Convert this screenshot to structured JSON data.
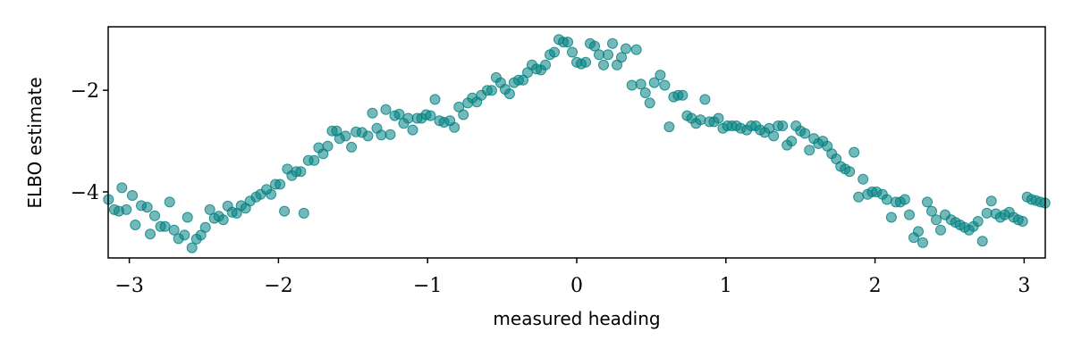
{
  "chart_data": {
    "type": "scatter",
    "title": "",
    "xlabel": "measured heading",
    "ylabel": "ELBO estimate",
    "xlim": [
      -3.14159,
      3.14159
    ],
    "ylim": [
      -5.3,
      -0.75
    ],
    "x_ticks": [
      -3,
      -2,
      -1,
      0,
      1,
      2,
      3
    ],
    "x_tick_labels": [
      "−3",
      "−2",
      "−1",
      "0",
      "1",
      "2",
      "3"
    ],
    "y_ticks": [
      -2,
      -4
    ],
    "y_tick_labels": [
      "−2",
      "−4"
    ],
    "grid": false,
    "legend": "none",
    "marker_color": "#008080",
    "marker_alpha": 0.55,
    "points": [
      [
        -3.14,
        -4.15
      ],
      [
        -3.1,
        -4.35
      ],
      [
        -3.07,
        -4.38
      ],
      [
        -3.05,
        -3.92
      ],
      [
        -3.02,
        -4.35
      ],
      [
        -2.98,
        -4.07
      ],
      [
        -2.96,
        -4.65
      ],
      [
        -2.92,
        -4.27
      ],
      [
        -2.88,
        -4.3
      ],
      [
        -2.86,
        -4.83
      ],
      [
        -2.83,
        -4.47
      ],
      [
        -2.79,
        -4.68
      ],
      [
        -2.76,
        -4.68
      ],
      [
        -2.73,
        -4.2
      ],
      [
        -2.7,
        -4.75
      ],
      [
        -2.67,
        -4.92
      ],
      [
        -2.63,
        -4.85
      ],
      [
        -2.61,
        -4.5
      ],
      [
        -2.58,
        -5.1
      ],
      [
        -2.55,
        -4.93
      ],
      [
        -2.52,
        -4.85
      ],
      [
        -2.49,
        -4.7
      ],
      [
        -2.46,
        -4.35
      ],
      [
        -2.43,
        -4.52
      ],
      [
        -2.4,
        -4.48
      ],
      [
        -2.37,
        -4.55
      ],
      [
        -2.34,
        -4.28
      ],
      [
        -2.31,
        -4.4
      ],
      [
        -2.28,
        -4.42
      ],
      [
        -2.25,
        -4.27
      ],
      [
        -2.22,
        -4.32
      ],
      [
        -2.19,
        -4.18
      ],
      [
        -2.15,
        -4.1
      ],
      [
        -2.12,
        -4.05
      ],
      [
        -2.08,
        -3.95
      ],
      [
        -2.05,
        -4.05
      ],
      [
        -2.02,
        -3.85
      ],
      [
        -1.99,
        -3.85
      ],
      [
        -1.96,
        -4.38
      ],
      [
        -1.94,
        -3.55
      ],
      [
        -1.91,
        -3.68
      ],
      [
        -1.88,
        -3.6
      ],
      [
        -1.85,
        -3.6
      ],
      [
        -1.83,
        -4.42
      ],
      [
        -1.8,
        -3.38
      ],
      [
        -1.76,
        -3.38
      ],
      [
        -1.73,
        -3.13
      ],
      [
        -1.7,
        -3.25
      ],
      [
        -1.67,
        -3.1
      ],
      [
        -1.64,
        -2.8
      ],
      [
        -1.61,
        -2.8
      ],
      [
        -1.59,
        -2.95
      ],
      [
        -1.55,
        -2.9
      ],
      [
        -1.51,
        -3.12
      ],
      [
        -1.48,
        -2.82
      ],
      [
        -1.44,
        -2.83
      ],
      [
        -1.4,
        -2.9
      ],
      [
        -1.37,
        -2.45
      ],
      [
        -1.34,
        -2.75
      ],
      [
        -1.31,
        -2.88
      ],
      [
        -1.28,
        -2.38
      ],
      [
        -1.25,
        -2.87
      ],
      [
        -1.22,
        -2.5
      ],
      [
        -1.19,
        -2.47
      ],
      [
        -1.16,
        -2.65
      ],
      [
        -1.13,
        -2.55
      ],
      [
        -1.1,
        -2.78
      ],
      [
        -1.07,
        -2.55
      ],
      [
        -1.04,
        -2.55
      ],
      [
        -1.01,
        -2.48
      ],
      [
        -0.98,
        -2.5
      ],
      [
        -0.95,
        -2.18
      ],
      [
        -0.92,
        -2.6
      ],
      [
        -0.89,
        -2.63
      ],
      [
        -0.85,
        -2.6
      ],
      [
        -0.82,
        -2.73
      ],
      [
        -0.79,
        -2.33
      ],
      [
        -0.76,
        -2.48
      ],
      [
        -0.73,
        -2.25
      ],
      [
        -0.7,
        -2.15
      ],
      [
        -0.67,
        -2.23
      ],
      [
        -0.64,
        -2.1
      ],
      [
        -0.6,
        -2.0
      ],
      [
        -0.57,
        -2.0
      ],
      [
        -0.54,
        -1.75
      ],
      [
        -0.51,
        -1.85
      ],
      [
        -0.48,
        -1.98
      ],
      [
        -0.45,
        -2.07
      ],
      [
        -0.42,
        -1.85
      ],
      [
        -0.39,
        -1.8
      ],
      [
        -0.36,
        -1.8
      ],
      [
        -0.33,
        -1.65
      ],
      [
        -0.3,
        -1.5
      ],
      [
        -0.27,
        -1.58
      ],
      [
        -0.24,
        -1.6
      ],
      [
        -0.21,
        -1.5
      ],
      [
        -0.18,
        -1.3
      ],
      [
        -0.15,
        -1.25
      ],
      [
        -0.12,
        -1.0
      ],
      [
        -0.09,
        -1.05
      ],
      [
        -0.06,
        -1.05
      ],
      [
        -0.03,
        -1.25
      ],
      [
        0.0,
        -1.45
      ],
      [
        0.03,
        -1.48
      ],
      [
        0.06,
        -1.45
      ],
      [
        0.09,
        -1.08
      ],
      [
        0.12,
        -1.13
      ],
      [
        0.15,
        -1.3
      ],
      [
        0.18,
        -1.5
      ],
      [
        0.21,
        -1.3
      ],
      [
        0.24,
        -1.08
      ],
      [
        0.27,
        -1.5
      ],
      [
        0.3,
        -1.35
      ],
      [
        0.33,
        -1.18
      ],
      [
        0.37,
        -1.9
      ],
      [
        0.4,
        -1.2
      ],
      [
        0.43,
        -1.88
      ],
      [
        0.46,
        -2.05
      ],
      [
        0.49,
        -2.25
      ],
      [
        0.52,
        -1.85
      ],
      [
        0.56,
        -1.7
      ],
      [
        0.59,
        -1.9
      ],
      [
        0.62,
        -2.72
      ],
      [
        0.65,
        -2.13
      ],
      [
        0.68,
        -2.1
      ],
      [
        0.71,
        -2.1
      ],
      [
        0.74,
        -2.5
      ],
      [
        0.77,
        -2.55
      ],
      [
        0.8,
        -2.65
      ],
      [
        0.83,
        -2.58
      ],
      [
        0.86,
        -2.18
      ],
      [
        0.89,
        -2.62
      ],
      [
        0.92,
        -2.62
      ],
      [
        0.95,
        -2.55
      ],
      [
        0.98,
        -2.75
      ],
      [
        1.01,
        -2.7
      ],
      [
        1.04,
        -2.7
      ],
      [
        1.07,
        -2.7
      ],
      [
        1.1,
        -2.75
      ],
      [
        1.14,
        -2.78
      ],
      [
        1.17,
        -2.7
      ],
      [
        1.2,
        -2.7
      ],
      [
        1.23,
        -2.78
      ],
      [
        1.26,
        -2.83
      ],
      [
        1.29,
        -2.75
      ],
      [
        1.32,
        -2.9
      ],
      [
        1.35,
        -2.7
      ],
      [
        1.38,
        -2.7
      ],
      [
        1.41,
        -3.08
      ],
      [
        1.44,
        -3.0
      ],
      [
        1.47,
        -2.7
      ],
      [
        1.5,
        -2.8
      ],
      [
        1.53,
        -2.85
      ],
      [
        1.56,
        -3.18
      ],
      [
        1.59,
        -2.95
      ],
      [
        1.62,
        -3.05
      ],
      [
        1.65,
        -3.0
      ],
      [
        1.68,
        -3.1
      ],
      [
        1.71,
        -3.25
      ],
      [
        1.74,
        -3.35
      ],
      [
        1.77,
        -3.5
      ],
      [
        1.8,
        -3.55
      ],
      [
        1.83,
        -3.6
      ],
      [
        1.86,
        -3.22
      ],
      [
        1.89,
        -4.1
      ],
      [
        1.92,
        -3.75
      ],
      [
        1.95,
        -4.05
      ],
      [
        1.98,
        -4.0
      ],
      [
        2.01,
        -4.0
      ],
      [
        2.05,
        -4.05
      ],
      [
        2.08,
        -4.15
      ],
      [
        2.11,
        -4.5
      ],
      [
        2.14,
        -4.2
      ],
      [
        2.17,
        -4.2
      ],
      [
        2.2,
        -4.15
      ],
      [
        2.23,
        -4.45
      ],
      [
        2.26,
        -4.9
      ],
      [
        2.29,
        -4.78
      ],
      [
        2.32,
        -5.0
      ],
      [
        2.35,
        -4.2
      ],
      [
        2.38,
        -4.38
      ],
      [
        2.41,
        -4.55
      ],
      [
        2.44,
        -4.75
      ],
      [
        2.47,
        -4.45
      ],
      [
        2.51,
        -4.55
      ],
      [
        2.54,
        -4.6
      ],
      [
        2.57,
        -4.65
      ],
      [
        2.6,
        -4.7
      ],
      [
        2.63,
        -4.75
      ],
      [
        2.66,
        -4.68
      ],
      [
        2.69,
        -4.58
      ],
      [
        2.72,
        -4.97
      ],
      [
        2.75,
        -4.42
      ],
      [
        2.78,
        -4.18
      ],
      [
        2.81,
        -4.43
      ],
      [
        2.84,
        -4.5
      ],
      [
        2.87,
        -4.45
      ],
      [
        2.9,
        -4.4
      ],
      [
        2.93,
        -4.5
      ],
      [
        2.96,
        -4.55
      ],
      [
        2.99,
        -4.58
      ],
      [
        3.02,
        -4.1
      ],
      [
        3.05,
        -4.15
      ],
      [
        3.08,
        -4.17
      ],
      [
        3.11,
        -4.2
      ],
      [
        3.14,
        -4.22
      ]
    ]
  }
}
